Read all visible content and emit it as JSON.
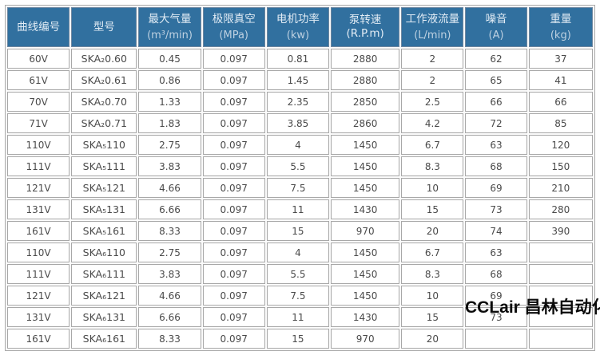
{
  "colors": {
    "header_bg": "#31709F",
    "header_text": "#E2ECF5",
    "header_unit_text": "#BED1E1",
    "cell_border": "#A8A8A8",
    "cell_text": "#4A4A4A",
    "watermark_text": "#0B0B0B"
  },
  "watermark": {
    "text": "CCLair 昌林自动化"
  },
  "table": {
    "columns": [
      {
        "label": "曲线编号",
        "unit": ""
      },
      {
        "label": "型号",
        "unit": ""
      },
      {
        "label": "最大气量",
        "unit": "(m³/min)"
      },
      {
        "label": "极限真空",
        "unit": "(MPa)"
      },
      {
        "label": "电机功率",
        "unit": "(kw)"
      },
      {
        "label": "泵转速(R.P.m)",
        "unit": ""
      },
      {
        "label": "工作液流量",
        "unit": "(L/min)"
      },
      {
        "label": "噪音",
        "unit": "(A)"
      },
      {
        "label": "重量",
        "unit": "(kg)"
      }
    ],
    "rows": [
      [
        "60V",
        "SKA₂0.60",
        "0.45",
        "0.097",
        "0.81",
        "2880",
        "2",
        "62",
        "37"
      ],
      [
        "61V",
        "SKA₂0.61",
        "0.86",
        "0.097",
        "1.45",
        "2880",
        "2",
        "65",
        "41"
      ],
      [
        "70V",
        "SKA₂0.70",
        "1.33",
        "0.097",
        "2.35",
        "2850",
        "2.5",
        "66",
        "66"
      ],
      [
        "71V",
        "SKA₂0.71",
        "1.83",
        "0.097",
        "3.85",
        "2860",
        "4.2",
        "72",
        "85"
      ],
      [
        "110V",
        "SKA₅110",
        "2.75",
        "0.097",
        "4",
        "1450",
        "6.7",
        "63",
        "120"
      ],
      [
        "111V",
        "SKA₅111",
        "3.83",
        "0.097",
        "5.5",
        "1450",
        "8.3",
        "68",
        "150"
      ],
      [
        "121V",
        "SKA₅121",
        "4.66",
        "0.097",
        "7.5",
        "1450",
        "10",
        "69",
        "210"
      ],
      [
        "131V",
        "SKA₅131",
        "6.66",
        "0.097",
        "11",
        "1430",
        "15",
        "73",
        "280"
      ],
      [
        "161V",
        "SKA₅161",
        "8.33",
        "0.097",
        "15",
        "970",
        "20",
        "74",
        "390"
      ],
      [
        "110V",
        "SKA₆110",
        "2.75",
        "0.097",
        "4",
        "1450",
        "6.7",
        "63",
        ""
      ],
      [
        "111V",
        "SKA₆111",
        "3.83",
        "0.097",
        "5.5",
        "1450",
        "8.3",
        "68",
        ""
      ],
      [
        "121V",
        "SKA₆121",
        "4.66",
        "0.097",
        "7.5",
        "1450",
        "10",
        "69",
        ""
      ],
      [
        "131V",
        "SKA₆131",
        "6.66",
        "0.097",
        "11",
        "1430",
        "15",
        "73",
        ""
      ],
      [
        "161V",
        "SKA₆161",
        "8.33",
        "0.097",
        "15",
        "970",
        "20",
        "",
        ""
      ]
    ]
  }
}
